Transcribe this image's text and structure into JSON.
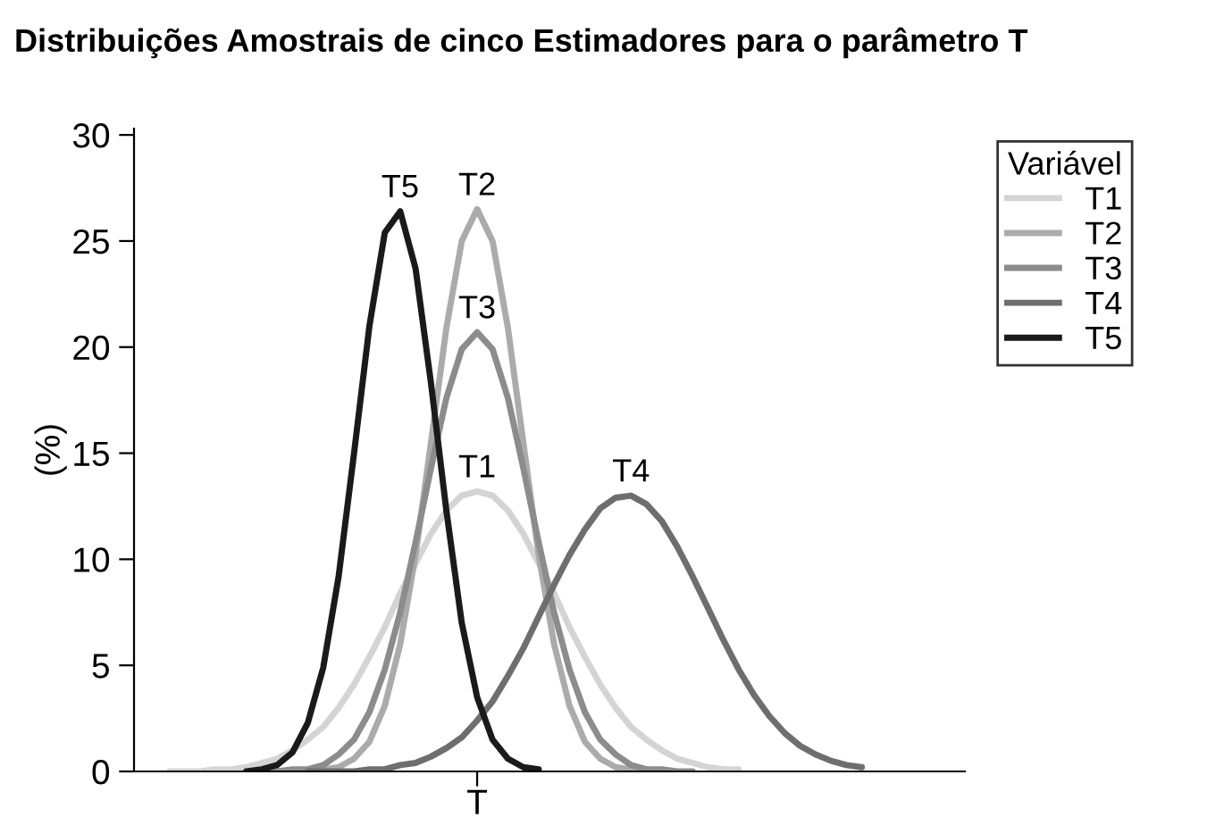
{
  "chart_data": {
    "type": "line",
    "title": "Distribuições Amostrais de cinco Estimadores para o parâmetro T",
    "ylabel": "(%)",
    "categories": [
      null,
      null,
      null,
      null,
      null,
      null,
      null,
      null,
      null,
      null,
      null,
      null,
      null,
      null,
      null,
      null,
      null,
      null,
      null,
      null,
      "T",
      null,
      null,
      null,
      null,
      null,
      null,
      null,
      null,
      null,
      null,
      null,
      null,
      null,
      null,
      null,
      null,
      null,
      null,
      null,
      null,
      null,
      null,
      null,
      null,
      null
    ],
    "series": [
      {
        "name": "T1",
        "color": "#d4d4d4",
        "values": [
          0.0,
          0.0,
          0.0,
          0.1,
          0.1,
          0.2,
          0.4,
          0.6,
          1.0,
          1.5,
          2.1,
          3.0,
          4.1,
          5.4,
          6.8,
          8.4,
          9.8,
          11.2,
          12.3,
          13.0,
          13.2,
          13.0,
          12.3,
          11.2,
          9.8,
          8.4,
          6.8,
          5.4,
          4.1,
          3.0,
          2.1,
          1.5,
          1.0,
          0.6,
          0.4,
          0.2,
          0.1,
          0.1,
          null,
          null,
          null,
          null,
          null,
          null,
          null,
          null
        ]
      },
      {
        "name": "T2",
        "color": "#ababab",
        "values": [
          null,
          null,
          null,
          null,
          null,
          null,
          null,
          null,
          0.0,
          0.0,
          0.1,
          0.2,
          0.6,
          1.4,
          3.1,
          6.0,
          10.2,
          15.5,
          20.9,
          25.0,
          26.5,
          25.0,
          20.9,
          15.5,
          10.2,
          6.0,
          3.1,
          1.4,
          0.6,
          0.2,
          0.1,
          0.0,
          null,
          null,
          null,
          null,
          null,
          null,
          null,
          null,
          null,
          null,
          null,
          null,
          null,
          null
        ]
      },
      {
        "name": "T3",
        "color": "#8c8c8c",
        "values": [
          null,
          null,
          null,
          null,
          null,
          null,
          0.0,
          0.0,
          0.1,
          0.1,
          0.3,
          0.8,
          1.5,
          2.8,
          4.8,
          7.5,
          10.8,
          14.3,
          17.6,
          19.9,
          20.7,
          19.9,
          17.6,
          14.3,
          10.8,
          7.5,
          4.8,
          2.8,
          1.5,
          0.8,
          0.3,
          0.1,
          0.1,
          0.0,
          0.0,
          null,
          null,
          null,
          null,
          null,
          null,
          null,
          null,
          null,
          null,
          null
        ]
      },
      {
        "name": "T4",
        "color": "#6e6e6e",
        "values": [
          null,
          null,
          null,
          null,
          null,
          null,
          null,
          null,
          null,
          0.0,
          0.0,
          0.0,
          0.0,
          0.1,
          0.1,
          0.3,
          0.4,
          0.7,
          1.1,
          1.6,
          2.4,
          3.3,
          4.5,
          5.8,
          7.3,
          8.8,
          10.2,
          11.4,
          12.4,
          12.9,
          13.0,
          12.6,
          11.8,
          10.6,
          9.2,
          7.7,
          6.2,
          4.8,
          3.6,
          2.6,
          1.8,
          1.2,
          0.8,
          0.5,
          0.3,
          0.2
        ]
      },
      {
        "name": "T5",
        "color": "#1a1a1a",
        "values": [
          null,
          null,
          null,
          null,
          null,
          0.0,
          0.1,
          0.3,
          0.9,
          2.3,
          4.9,
          9.2,
          15.0,
          21.0,
          25.4,
          26.4,
          23.7,
          18.3,
          12.3,
          7.0,
          3.5,
          1.5,
          0.6,
          0.2,
          0.1,
          null,
          null,
          null,
          null,
          null,
          null,
          null,
          null,
          null,
          null,
          null,
          null,
          null,
          null,
          null,
          null,
          null,
          null,
          null,
          null,
          null
        ]
      }
    ],
    "ylim": [
      0,
      30.3
    ],
    "yticks": [
      0,
      5,
      10,
      15,
      20,
      25,
      30
    ],
    "legend": "top right",
    "legend_title": "Variável",
    "grid": false,
    "marker": "none",
    "line_style": "solid"
  }
}
